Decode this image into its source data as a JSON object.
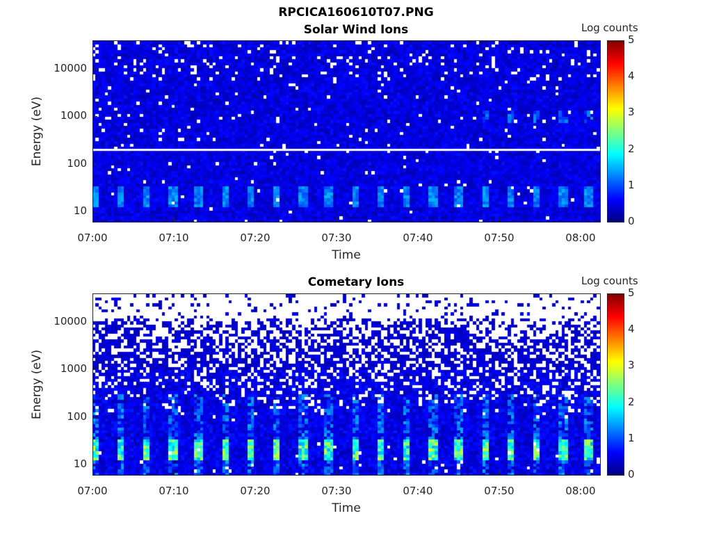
{
  "figure_title": "RPCICA160610T07.PNG",
  "chart_data": [
    {
      "type": "heatmap",
      "title": "Solar Wind Ions",
      "xlabel": "Time",
      "ylabel": "Energy (eV)",
      "xticks": [
        "07:00",
        "07:10",
        "07:20",
        "07:30",
        "07:40",
        "07:50",
        "08:00"
      ],
      "xlim_minutes": [
        0,
        62.4
      ],
      "yticks": [
        "10",
        "100",
        "1000",
        "10000"
      ],
      "yscale": "log",
      "ylim": [
        6,
        40000
      ],
      "colorbar": {
        "label": "Log counts",
        "ticks": [
          "0",
          "1",
          "2",
          "3",
          "4",
          "5"
        ],
        "range": [
          0,
          5
        ],
        "colormap": "jet"
      },
      "pattern": {
        "background_log_counts": 0.5,
        "pulse_energy_range_eV": [
          12,
          35
        ],
        "pulse_peak_log_counts": 1.4,
        "pulse_period_min": 3.2,
        "gap_line_energy_eV": 200,
        "late_spots_energy_eV": 1000,
        "late_spots_log_counts": 1.3,
        "white_fraction_high": 0.05,
        "seed": 7
      }
    },
    {
      "type": "heatmap",
      "title": "Cometary Ions",
      "xlabel": "Time",
      "ylabel": "Energy (eV)",
      "xticks": [
        "07:00",
        "07:10",
        "07:20",
        "07:30",
        "07:40",
        "07:50",
        "08:00"
      ],
      "xlim_minutes": [
        0,
        62.4
      ],
      "yticks": [
        "10",
        "100",
        "1000",
        "10000"
      ],
      "yscale": "log",
      "ylim": [
        6,
        40000
      ],
      "colorbar": {
        "label": "Log counts",
        "ticks": [
          "0",
          "1",
          "2",
          "3",
          "4",
          "5"
        ],
        "range": [
          0,
          5
        ],
        "colormap": "jet"
      },
      "pattern": {
        "background_log_counts": 0.3,
        "pulse_energy_range_eV": [
          12,
          35
        ],
        "pulse_peak_log_counts": 2.9,
        "pulse_period_min": 3.2,
        "streak_top_eV": 300,
        "white_fraction_high": 0.55,
        "seed": 13
      }
    }
  ]
}
